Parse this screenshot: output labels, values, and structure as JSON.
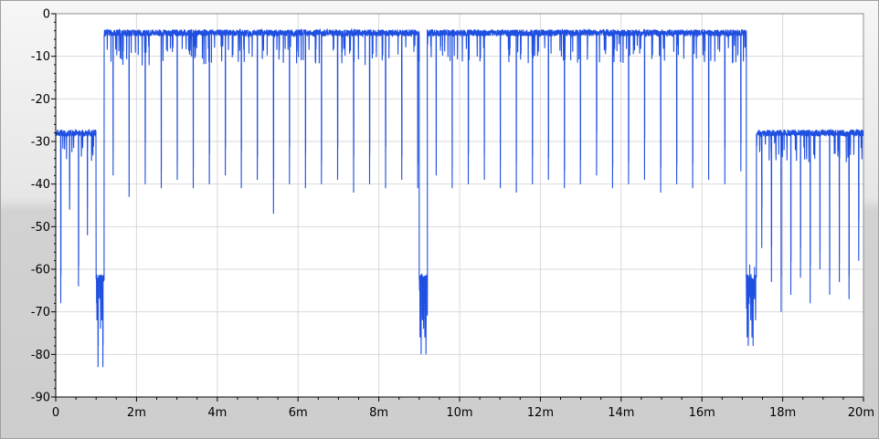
{
  "chart_data": {
    "type": "line",
    "title": "",
    "xlabel": "",
    "ylabel": "",
    "xlim": [
      0,
      20
    ],
    "ylim": [
      -90,
      0
    ],
    "grid": true,
    "x_tick_values": [
      0,
      2,
      4,
      6,
      8,
      10,
      12,
      14,
      16,
      18,
      20
    ],
    "x_tick_labels": [
      "0",
      "2m",
      "4m",
      "6m",
      "8m",
      "10m",
      "12m",
      "14m",
      "16m",
      "18m",
      "20m"
    ],
    "y_tick_values": [
      0,
      -10,
      -20,
      -30,
      -40,
      -50,
      -60,
      -70,
      -80,
      -90
    ],
    "y_tick_labels": [
      "0",
      "-10",
      "-20",
      "-30",
      "-40",
      "-50",
      "-60",
      "-70",
      "-80",
      "-90"
    ],
    "colors": {
      "series": "#1f4fe0",
      "grid": "#d9d9d9",
      "plot_background": "#ffffff"
    },
    "series": [
      {
        "segments": [
          {
            "x": [
              0,
              1.0
            ],
            "level": -28,
            "burst_period": 0.22,
            "burst_min": [
              -68,
              -46,
              -64,
              -52
            ]
          },
          {
            "x": [
              1.0,
              1.2
            ],
            "level": -62,
            "burst_period": 0.03,
            "burst_min": [
              -72,
              -83,
              -66,
              -74
            ]
          },
          {
            "x": [
              1.2,
              9.0
            ],
            "level": -4.5,
            "burst_period": 0.397,
            "burst_min": [
              -38,
              -43,
              -40,
              -41,
              -39,
              -41,
              -40,
              -38,
              -41,
              -39,
              -47,
              -40,
              -41,
              -40,
              -39,
              -42,
              -40,
              -41,
              -39,
              -41
            ]
          },
          {
            "x": [
              9.0,
              9.2
            ],
            "level": -62,
            "burst_period": 0.03,
            "burst_min": [
              -76,
              -80,
              -70,
              -74
            ]
          },
          {
            "x": [
              9.2,
              17.1
            ],
            "level": -4.5,
            "burst_period": 0.397,
            "burst_min": [
              -38,
              -41,
              -40,
              -39,
              -41,
              -42,
              -40,
              -39,
              -41,
              -40,
              -38,
              -41,
              -40,
              -39,
              -42,
              -40,
              -41,
              -39,
              -40,
              -37
            ]
          },
          {
            "x": [
              17.1,
              17.35
            ],
            "level": -62,
            "burst_period": 0.03,
            "burst_min": [
              -76,
              -78,
              -66,
              -72
            ]
          },
          {
            "x": [
              17.35,
              20.0
            ],
            "level": -28,
            "burst_period": 0.24,
            "burst_min": [
              -55,
              -63,
              -70,
              -66,
              -62,
              -68,
              -60,
              -66,
              -63,
              -67,
              -58
            ]
          }
        ]
      }
    ]
  }
}
